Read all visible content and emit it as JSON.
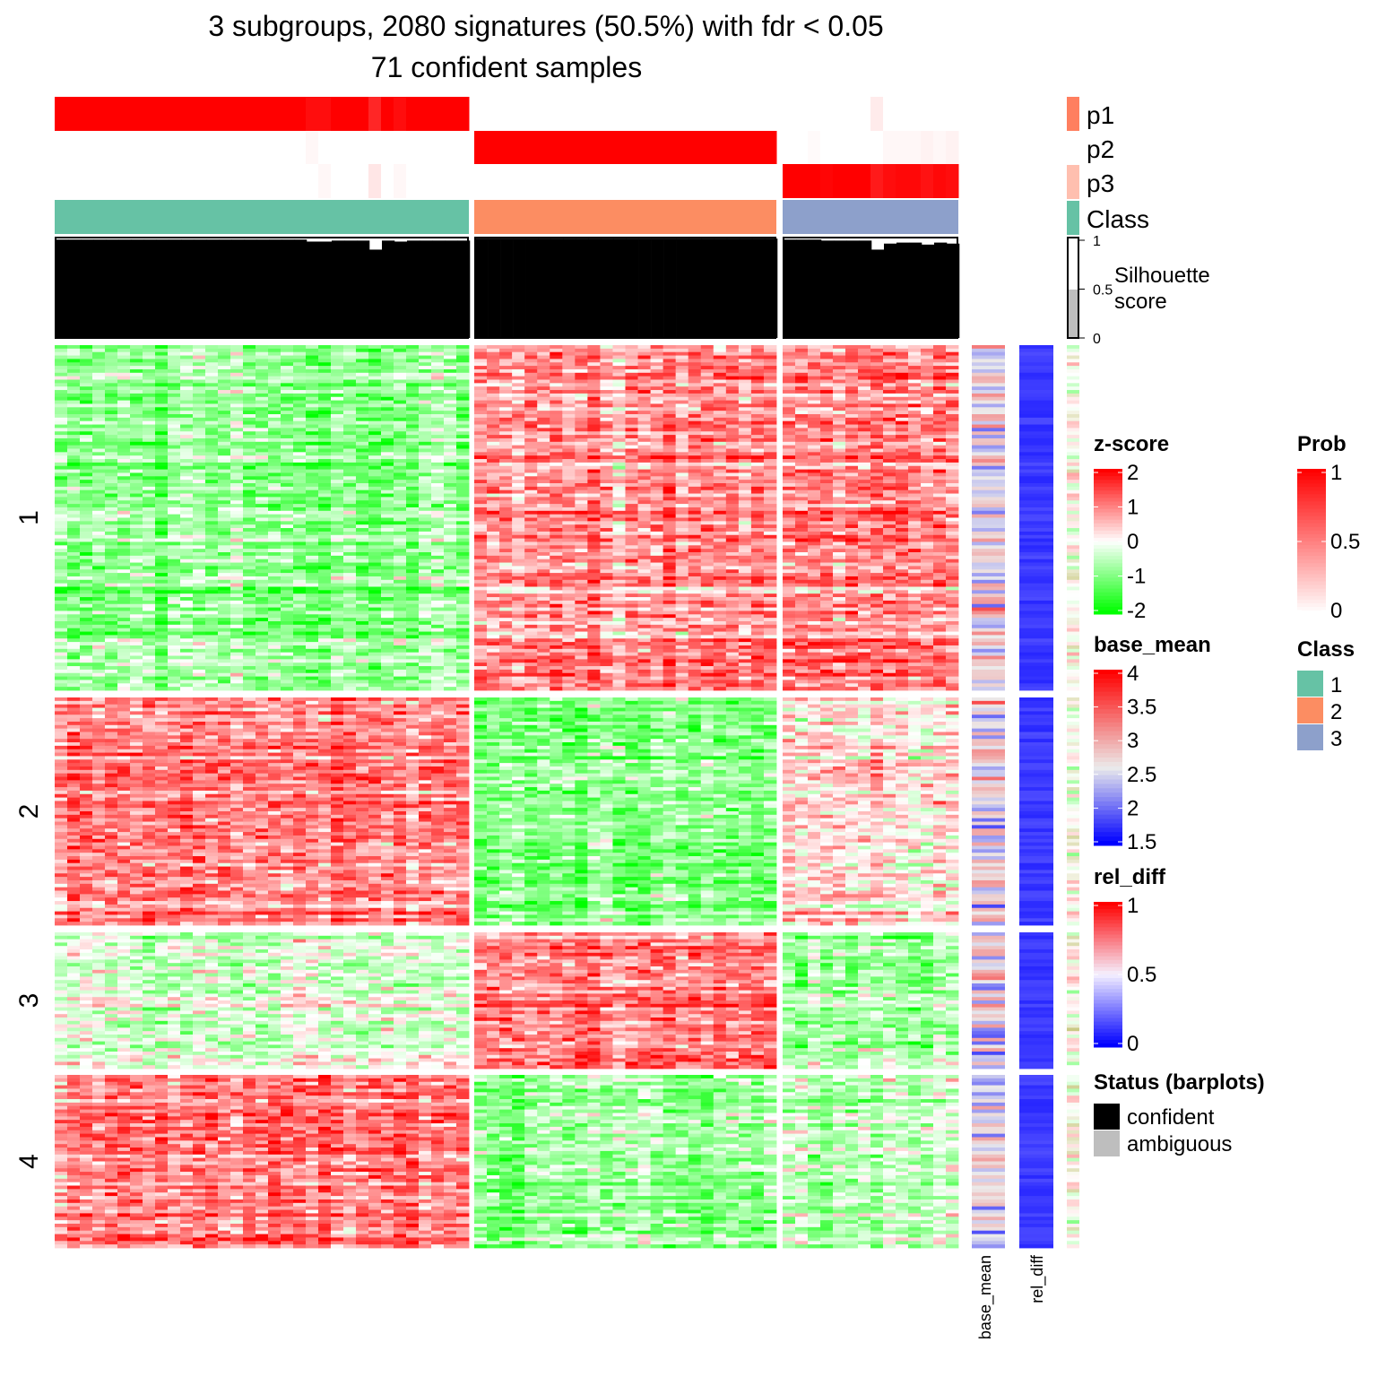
{
  "chart_data": {
    "type": "heatmap",
    "title": [
      "3 subgroups, 2080 signatures (50.5%) with fdr < 0.05",
      "71 confident samples"
    ],
    "column_groups": [
      {
        "class": "1",
        "n": 33
      },
      {
        "class": "2",
        "n": 24
      },
      {
        "class": "3",
        "n": 14
      }
    ],
    "row_groups": [
      {
        "label": "1",
        "rows": 100
      },
      {
        "label": "2",
        "rows": 66
      },
      {
        "label": "3",
        "rows": 40
      },
      {
        "label": "4",
        "rows": 50
      }
    ],
    "block_mean_zscore": [
      [
        -0.9,
        0.8,
        0.9
      ],
      [
        1.0,
        -0.9,
        0.3
      ],
      [
        -0.3,
        1.0,
        -0.7
      ],
      [
        1.0,
        -0.8,
        -0.5
      ]
    ],
    "prob": {
      "p1": [
        [
          1,
          1,
          1,
          1,
          1,
          1,
          1,
          1,
          1,
          1,
          1,
          1,
          1,
          1,
          1,
          1,
          1,
          1,
          1,
          1,
          0.95,
          0.95,
          1,
          1,
          1,
          0.85,
          1,
          0.95,
          1,
          1,
          1,
          1,
          1
        ],
        [
          0,
          0,
          0,
          0,
          0,
          0,
          0,
          0,
          0,
          0,
          0,
          0,
          0,
          0,
          0,
          0,
          0,
          0,
          0,
          0,
          0,
          0,
          0,
          0
        ],
        [
          0,
          0,
          0,
          0,
          0,
          0,
          0,
          0.08,
          0,
          0,
          0,
          0,
          0,
          0
        ]
      ],
      "p2": [
        [
          0,
          0,
          0,
          0,
          0,
          0,
          0,
          0,
          0,
          0,
          0,
          0,
          0,
          0,
          0,
          0,
          0,
          0,
          0,
          0,
          0.03,
          0,
          0,
          0,
          0,
          0,
          0,
          0,
          0,
          0,
          0,
          0,
          0
        ],
        [
          1,
          1,
          1,
          1,
          1,
          1,
          1,
          1,
          1,
          1,
          1,
          1,
          1,
          1,
          1,
          1,
          1,
          1,
          1,
          1,
          1,
          1,
          1,
          1
        ],
        [
          0,
          0,
          0.02,
          0,
          0,
          0,
          0,
          0,
          0.03,
          0.03,
          0.03,
          0.05,
          0.03,
          0.05
        ]
      ],
      "p3": [
        [
          0,
          0,
          0,
          0,
          0,
          0,
          0,
          0,
          0,
          0,
          0,
          0,
          0,
          0,
          0,
          0,
          0,
          0,
          0,
          0,
          0,
          0.03,
          0,
          0,
          0,
          0.1,
          0,
          0.03,
          0,
          0,
          0,
          0,
          0
        ],
        [
          0,
          0,
          0,
          0,
          0,
          0,
          0,
          0,
          0,
          0,
          0,
          0,
          0,
          0,
          0,
          0,
          0,
          0,
          0,
          0,
          0,
          0,
          0,
          0
        ],
        [
          1,
          1,
          1,
          0.98,
          1,
          1,
          1,
          0.9,
          0.95,
          0.97,
          0.97,
          0.93,
          0.97,
          0.95
        ]
      ]
    },
    "silhouette": [
      [
        0.98,
        0.98,
        0.98,
        0.98,
        0.98,
        0.98,
        0.98,
        0.98,
        0.98,
        0.98,
        0.98,
        0.98,
        0.98,
        0.98,
        0.98,
        0.98,
        0.98,
        0.98,
        0.98,
        0.98,
        0.96,
        0.96,
        0.97,
        0.97,
        0.97,
        0.88,
        0.97,
        0.96,
        0.97,
        0.97,
        0.97,
        0.97,
        0.97
      ],
      [
        0.99,
        0.99,
        0.99,
        0.99,
        0.99,
        0.99,
        0.99,
        0.99,
        0.99,
        0.99,
        0.99,
        0.99,
        0.99,
        0.99,
        0.99,
        0.99,
        0.99,
        0.99,
        0.99,
        0.99,
        0.99,
        0.99,
        0.99,
        0.99
      ],
      [
        0.98,
        0.98,
        0.98,
        0.97,
        0.97,
        0.97,
        0.97,
        0.88,
        0.94,
        0.95,
        0.95,
        0.93,
        0.95,
        0.94
      ]
    ],
    "class_colors": {
      "1": "#66C2A5",
      "2": "#FC8D62",
      "3": "#8DA0CB"
    },
    "annotation_labels": {
      "p1": "p1",
      "p2": "p2",
      "p3": "p3",
      "class": "Class",
      "silhouette": "Silhouette",
      "silhouette2": "score",
      "sil_ticks": [
        "1",
        "0.5",
        "0"
      ]
    },
    "bottom_labels": {
      "base_mean": "base_mean",
      "rel_diff": "rel_diff"
    },
    "legends": {
      "zscore": {
        "title": "z-score",
        "ticks": [
          "2",
          "1",
          "0",
          "-1",
          "-2"
        ]
      },
      "prob": {
        "title": "Prob",
        "ticks": [
          "1",
          "0.5",
          "0"
        ]
      },
      "base_mean": {
        "title": "base_mean",
        "ticks": [
          "4",
          "3.5",
          "3",
          "2.5",
          "2",
          "1.5"
        ]
      },
      "class": {
        "title": "Class",
        "items": [
          "1",
          "2",
          "3"
        ]
      },
      "rel_diff": {
        "title": "rel_diff",
        "ticks": [
          "1",
          "0.5",
          "0"
        ]
      },
      "status": {
        "title": "Status (barplots)",
        "items": [
          "confident",
          "ambiguous"
        ],
        "colors": [
          "#000000",
          "#BEBEBE"
        ]
      }
    }
  }
}
